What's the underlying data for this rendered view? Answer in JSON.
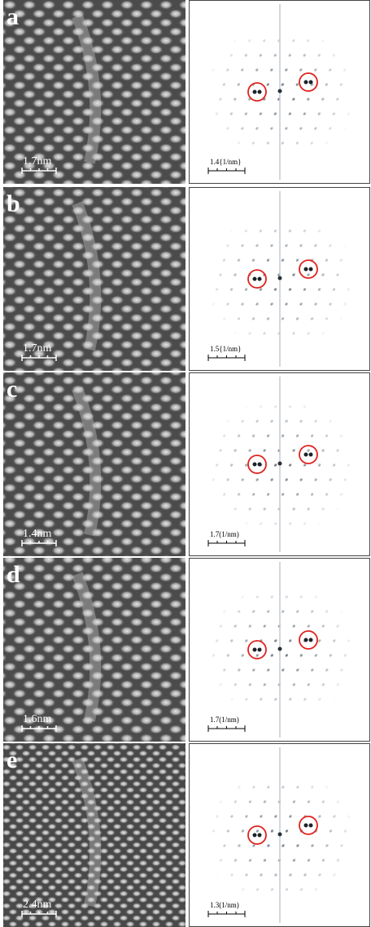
{
  "panels": [
    {
      "label": "a",
      "real_scale": "1.7nm",
      "fft_scale": "1.4{1/nm}"
    },
    {
      "label": "b",
      "real_scale": "1.7nm",
      "fft_scale": "1.5{1/nm}"
    },
    {
      "label": "c",
      "real_scale": "1.4nm",
      "fft_scale": "1.7(1/nm)"
    },
    {
      "label": "d",
      "real_scale": "1.6nm",
      "fft_scale": "1.7(1/nm)"
    },
    {
      "label": "e",
      "real_scale": "2.4nm",
      "fft_scale": "1.3(1/nm)"
    }
  ]
}
